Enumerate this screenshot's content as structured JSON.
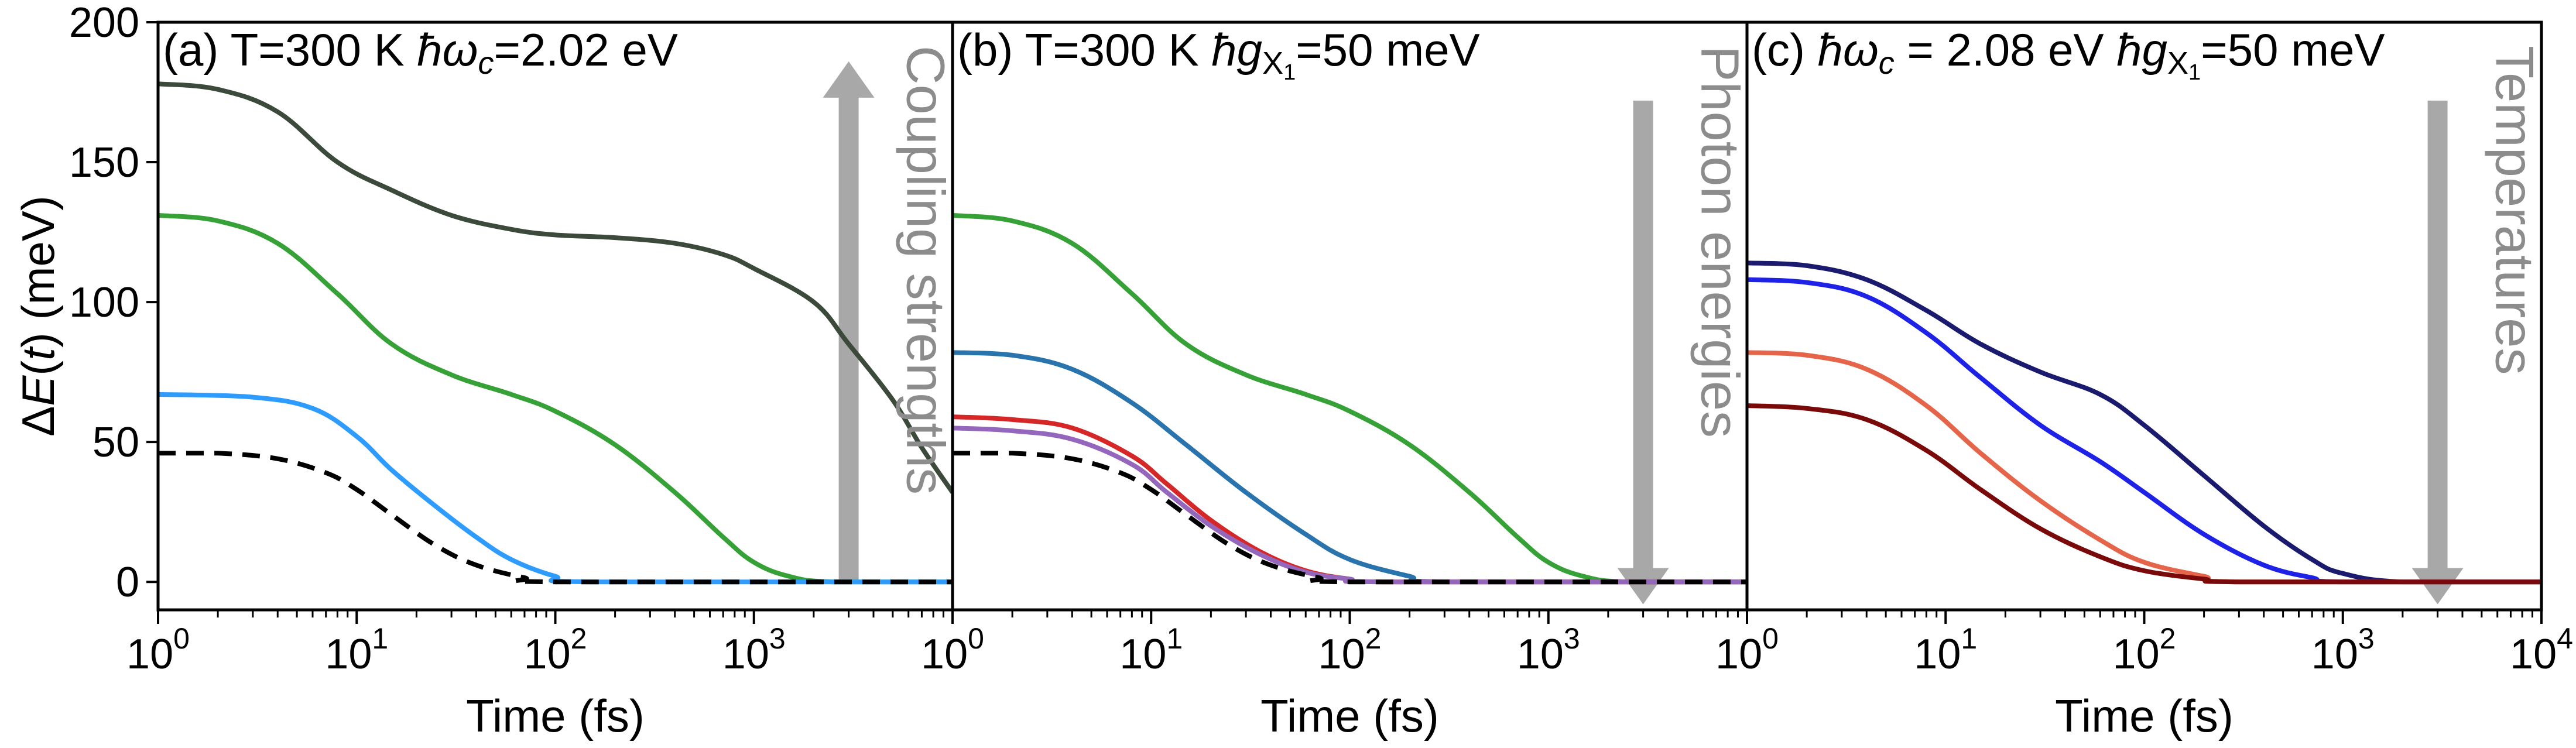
{
  "chart_data": {
    "type": "line",
    "ylabel_parts": [
      "Δ",
      "E",
      "(",
      "t",
      ") (meV)"
    ],
    "ylim": [
      -10,
      200
    ],
    "yticks": [
      0,
      50,
      100,
      150,
      200
    ],
    "ytick_labels": [
      "0",
      "50",
      "100",
      "150",
      "200"
    ],
    "xlabel": "Time (fs)",
    "xscale": "log",
    "xtick_base": "10",
    "panels": [
      {
        "id": "a",
        "title_parts": [
          "(a) T=300 K  ",
          "ħω",
          "c",
          "=2.02 eV"
        ],
        "xlim": [
          1,
          10000
        ],
        "xtick_exponents": [
          "0",
          "1",
          "2",
          "3"
        ],
        "arrow": {
          "direction": "up",
          "x": 3000,
          "from": 0,
          "to": 186
        },
        "annotation": "Coupling strengths",
        "series": [
          {
            "name": "dark-green",
            "color": "#3b4a3a",
            "dash": false,
            "points": [
              [
                1,
                178
              ],
              [
                2,
                176
              ],
              [
                4,
                168
              ],
              [
                8,
                150
              ],
              [
                15,
                140
              ],
              [
                30,
                131
              ],
              [
                60,
                126
              ],
              [
                100,
                124
              ],
              [
                200,
                123
              ],
              [
                400,
                121
              ],
              [
                700,
                117
              ],
              [
                1000,
                112
              ],
              [
                2000,
                100
              ],
              [
                3000,
                85
              ],
              [
                5000,
                65
              ],
              [
                7000,
                48
              ],
              [
                10000,
                32
              ]
            ]
          },
          {
            "name": "green",
            "color": "#36a136",
            "dash": false,
            "points": [
              [
                1,
                131
              ],
              [
                2,
                129
              ],
              [
                4,
                121
              ],
              [
                8,
                103
              ],
              [
                15,
                85
              ],
              [
                30,
                74
              ],
              [
                60,
                67
              ],
              [
                100,
                61
              ],
              [
                200,
                49
              ],
              [
                400,
                32
              ],
              [
                700,
                16
              ],
              [
                1000,
                7
              ],
              [
                1500,
                2
              ],
              [
                2500,
                0
              ],
              [
                10000,
                0
              ]
            ]
          },
          {
            "name": "light-blue",
            "color": "#2e9cff",
            "dash": false,
            "points": [
              [
                1,
                67
              ],
              [
                3,
                66
              ],
              [
                6,
                62
              ],
              [
                10,
                52
              ],
              [
                15,
                40
              ],
              [
                25,
                27
              ],
              [
                40,
                16
              ],
              [
                60,
                8
              ],
              [
                100,
                2
              ],
              [
                150,
                0
              ],
              [
                10000,
                0
              ]
            ]
          },
          {
            "name": "black-dashed",
            "color": "#000000",
            "dash": true,
            "points": [
              [
                1,
                46
              ],
              [
                2,
                46
              ],
              [
                4,
                44
              ],
              [
                7,
                39
              ],
              [
                10,
                33
              ],
              [
                15,
                24
              ],
              [
                25,
                13
              ],
              [
                40,
                6
              ],
              [
                70,
                1.5
              ],
              [
                100,
                0
              ],
              [
                10000,
                0
              ]
            ]
          }
        ]
      },
      {
        "id": "b",
        "title_parts": [
          "(b) T=300 K  ",
          "ħg",
          "X",
          "1",
          "=50 meV"
        ],
        "xlim": [
          1,
          10000
        ],
        "xtick_exponents": [
          "0",
          "1",
          "2",
          "3"
        ],
        "arrow": {
          "direction": "down",
          "x": 3000,
          "from": 172,
          "to": -8
        },
        "annotation": "Photon energies",
        "series": [
          {
            "name": "green",
            "color": "#36a136",
            "dash": false,
            "points": [
              [
                1,
                131
              ],
              [
                2,
                129
              ],
              [
                4,
                121
              ],
              [
                8,
                103
              ],
              [
                15,
                85
              ],
              [
                30,
                74
              ],
              [
                60,
                67
              ],
              [
                100,
                61
              ],
              [
                200,
                49
              ],
              [
                400,
                32
              ],
              [
                700,
                16
              ],
              [
                1000,
                7
              ],
              [
                1500,
                2
              ],
              [
                2500,
                0
              ],
              [
                10000,
                0
              ]
            ]
          },
          {
            "name": "steel-blue",
            "color": "#2a74ad",
            "dash": false,
            "points": [
              [
                1,
                82
              ],
              [
                2,
                81
              ],
              [
                4,
                76
              ],
              [
                8,
                64
              ],
              [
                15,
                49
              ],
              [
                30,
                32
              ],
              [
                60,
                17
              ],
              [
                100,
                8
              ],
              [
                200,
                2
              ],
              [
                300,
                0
              ],
              [
                10000,
                0
              ]
            ]
          },
          {
            "name": "red",
            "color": "#d62728",
            "dash": false,
            "points": [
              [
                1,
                59
              ],
              [
                2,
                58
              ],
              [
                4,
                55
              ],
              [
                8,
                45
              ],
              [
                12,
                35
              ],
              [
                20,
                22
              ],
              [
                35,
                11
              ],
              [
                60,
                4
              ],
              [
                100,
                1
              ],
              [
                150,
                0
              ],
              [
                10000,
                0
              ]
            ]
          },
          {
            "name": "purple",
            "color": "#9467bd",
            "dash": false,
            "points": [
              [
                1,
                55
              ],
              [
                2,
                54
              ],
              [
                4,
                51
              ],
              [
                8,
                42
              ],
              [
                12,
                32
              ],
              [
                20,
                20
              ],
              [
                35,
                10
              ],
              [
                60,
                3.5
              ],
              [
                100,
                1
              ],
              [
                150,
                0
              ],
              [
                10000,
                0
              ]
            ]
          },
          {
            "name": "black-dashed",
            "color": "#000000",
            "dash": true,
            "points": [
              [
                1,
                46
              ],
              [
                2,
                46
              ],
              [
                4,
                44
              ],
              [
                7,
                39
              ],
              [
                10,
                33
              ],
              [
                15,
                24
              ],
              [
                25,
                13
              ],
              [
                40,
                6
              ],
              [
                70,
                1.5
              ],
              [
                100,
                0
              ],
              [
                10000,
                0
              ]
            ]
          }
        ]
      },
      {
        "id": "c",
        "title_parts": [
          "(c) ",
          "ħω",
          "c",
          " = 2.08 eV  ",
          "ħg",
          "X",
          "1",
          "=50 meV"
        ],
        "xlim": [
          1,
          10000
        ],
        "xtick_exponents": [
          "0",
          "1",
          "2",
          "3",
          "4"
        ],
        "arrow": {
          "direction": "down",
          "x": 3000,
          "from": 172,
          "to": -8
        },
        "annotation": "Temperatures",
        "series": [
          {
            "name": "navy",
            "color": "#1a1a6e",
            "dash": false,
            "points": [
              [
                1,
                114
              ],
              [
                2,
                113
              ],
              [
                4,
                108
              ],
              [
                8,
                97
              ],
              [
                15,
                85
              ],
              [
                30,
                75
              ],
              [
                60,
                67
              ],
              [
                100,
                56
              ],
              [
                200,
                38
              ],
              [
                400,
                20
              ],
              [
                700,
                8
              ],
              [
                1000,
                3
              ],
              [
                2000,
                0
              ],
              [
                10000,
                0
              ]
            ]
          },
          {
            "name": "blue",
            "color": "#1e22e6",
            "dash": false,
            "points": [
              [
                1,
                108
              ],
              [
                2,
                107
              ],
              [
                4,
                102
              ],
              [
                8,
                89
              ],
              [
                15,
                73
              ],
              [
                30,
                56
              ],
              [
                60,
                43
              ],
              [
                100,
                32
              ],
              [
                200,
                17
              ],
              [
                400,
                6
              ],
              [
                700,
                1.5
              ],
              [
                1000,
                0
              ],
              [
                10000,
                0
              ]
            ]
          },
          {
            "name": "coral",
            "color": "#e5654a",
            "dash": false,
            "points": [
              [
                1,
                82
              ],
              [
                2,
                81
              ],
              [
                4,
                76
              ],
              [
                8,
                63
              ],
              [
                15,
                46
              ],
              [
                30,
                29
              ],
              [
                60,
                15
              ],
              [
                100,
                7
              ],
              [
                200,
                2
              ],
              [
                300,
                0
              ],
              [
                10000,
                0
              ]
            ]
          },
          {
            "name": "dark-red",
            "color": "#7a0a0a",
            "dash": false,
            "points": [
              [
                1,
                63
              ],
              [
                2,
                62
              ],
              [
                4,
                58
              ],
              [
                8,
                47
              ],
              [
                15,
                33
              ],
              [
                30,
                19
              ],
              [
                60,
                9
              ],
              [
                100,
                4
              ],
              [
                200,
                1
              ],
              [
                300,
                0
              ],
              [
                10000,
                0
              ]
            ]
          }
        ]
      }
    ]
  }
}
